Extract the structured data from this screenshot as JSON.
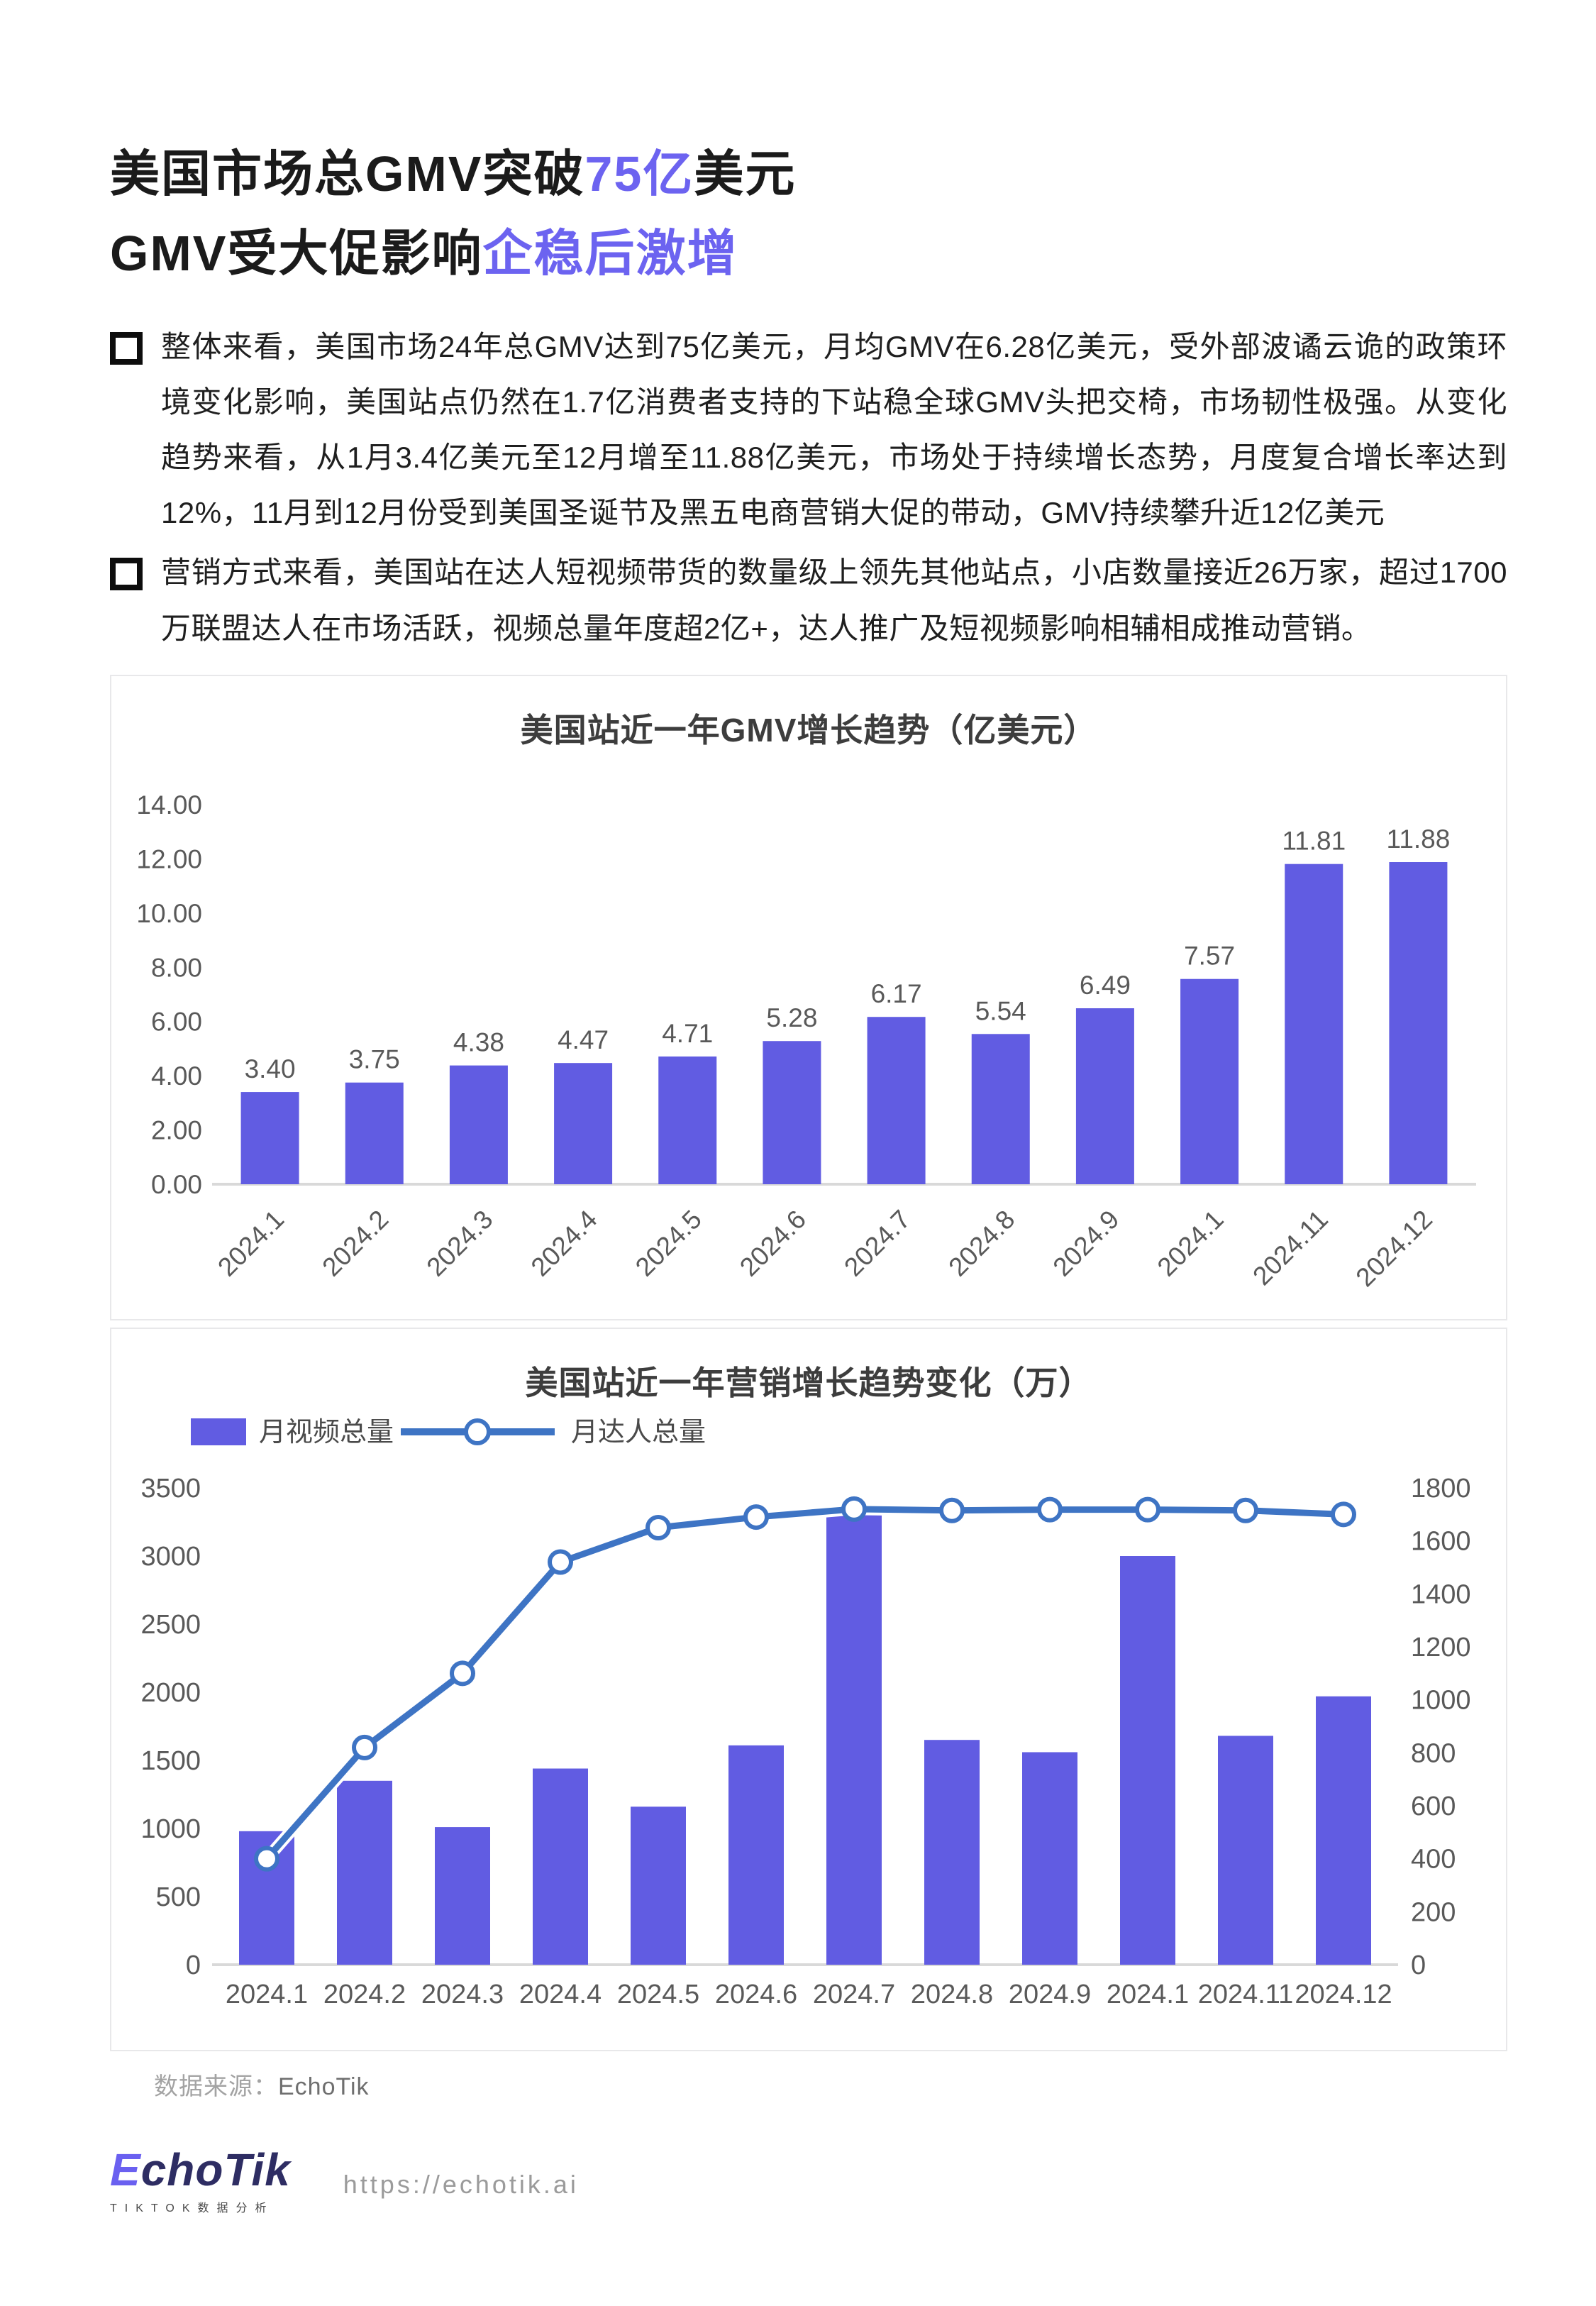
{
  "header": {
    "line1_pre": "美国市场总GMV突破",
    "line1_accent": "75亿",
    "line1_post": "美元",
    "line2_pre": "GMV受大促影响",
    "line2_accent": "企稳后激增",
    "accent_color": "#6c63f0"
  },
  "bullets": [
    "整体来看，美国市场24年总GMV达到75亿美元，月均GMV在6.28亿美元，受外部波谲云诡的政策环境变化影响，美国站点仍然在1.7亿消费者支持的下站稳全球GMV头把交椅，市场韧性极强。从变化趋势来看，从1月3.4亿美元至12月增至11.88亿美元，市场处于持续增长态势，月度复合增长率达到12%，11月到12月份受到美国圣诞节及黑五电商营销大促的带动，GMV持续攀升近12亿美元",
    "营销方式来看，美国站在达人短视频带货的数量级上领先其他站点，小店数量接近26万家，超过1700万联盟达人在市场活跃，视频总量年度超2亿+，达人推广及短视频影响相辅相成推动营销。"
  ],
  "chart_data": [
    {
      "type": "bar",
      "title": "美国站近一年GMV增长趋势（亿美元）",
      "categories": [
        "2024.1",
        "2024.2",
        "2024.3",
        "2024.4",
        "2024.5",
        "2024.6",
        "2024.7",
        "2024.8",
        "2024.9",
        "2024.1",
        "2024.11",
        "2024.12"
      ],
      "values": [
        3.4,
        3.75,
        4.38,
        4.47,
        4.71,
        5.28,
        6.17,
        5.54,
        6.49,
        7.57,
        11.81,
        11.88
      ],
      "xlabel": "",
      "ylabel": "",
      "ylim": [
        0,
        14
      ],
      "ytick_step": 2,
      "grid": false,
      "value_labels": true,
      "bar_color": "#615ce2",
      "axis_text_color": "#595959",
      "baseline_color": "#d9d9d9"
    },
    {
      "type": "bar+line",
      "title": "美国站近一年营销增长趋势变化（万）",
      "categories": [
        "2024.1",
        "2024.2",
        "2024.3",
        "2024.4",
        "2024.5",
        "2024.6",
        "2024.7",
        "2024.8",
        "2024.9",
        "2024.1",
        "2024.11",
        "2024.12"
      ],
      "series": [
        {
          "name": "月视频总量",
          "type": "bar",
          "axis": "left",
          "values": [
            980,
            1350,
            1010,
            1440,
            1160,
            1610,
            3350,
            1650,
            1560,
            3000,
            1680,
            1970
          ],
          "color": "#615ce2"
        },
        {
          "name": "月达人总量",
          "type": "line",
          "axis": "right",
          "values": [
            400,
            820,
            1100,
            1520,
            1650,
            1690,
            1720,
            1715,
            1718,
            1718,
            1715,
            1700
          ],
          "color": "#3e74c4",
          "marker": "circle-white"
        }
      ],
      "left_ylim": [
        0,
        3500
      ],
      "left_step": 500,
      "right_ylim": [
        0,
        1800
      ],
      "right_step": 200,
      "grid": false,
      "legend_position": "top-left",
      "axis_text_color": "#595959",
      "baseline_color": "#d9d9d9"
    }
  ],
  "caption": {
    "label": "数据来源：",
    "value": "EchoTik"
  },
  "footer": {
    "logo_first": "E",
    "logo_rest": "choTik",
    "tagline": "TIKTOK数据分析",
    "url": "https://echotik.ai"
  }
}
